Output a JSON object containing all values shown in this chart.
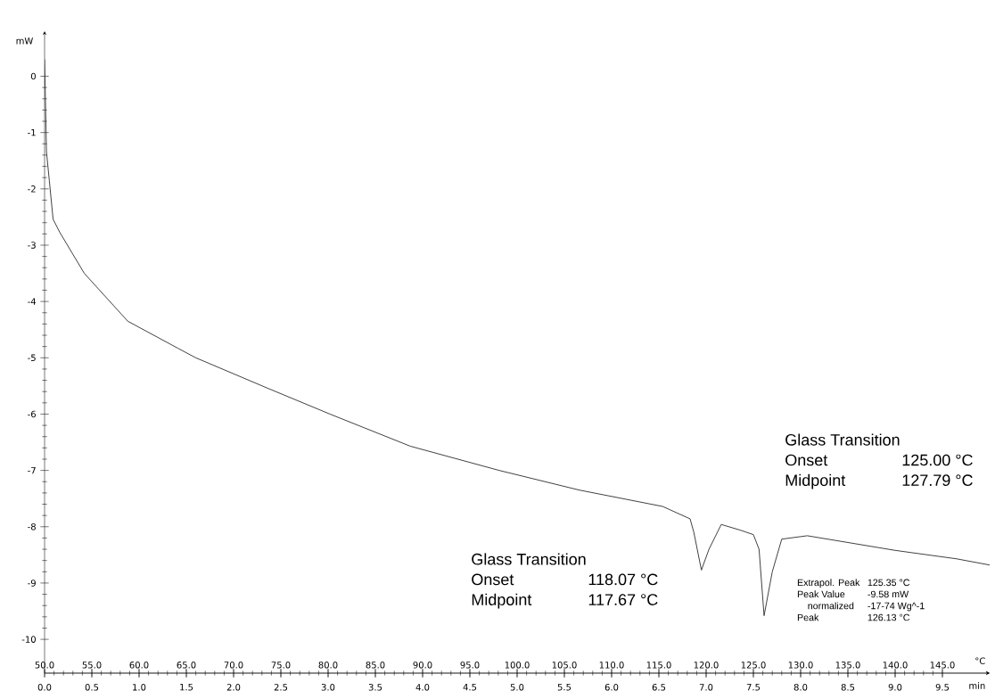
{
  "chart_data": {
    "type": "line",
    "xlabel": "°C",
    "ylabel": "mW",
    "x2label": "min",
    "xlim": [
      50,
      150
    ],
    "ylim": [
      -10.6,
      0.8
    ],
    "x2lim": [
      0,
      10
    ],
    "xticks": [
      {
        "value": 50,
        "label": "50.0"
      },
      {
        "value": 55,
        "label": "55.0"
      },
      {
        "value": 60,
        "label": "60.0"
      },
      {
        "value": 65,
        "label": "65.0"
      },
      {
        "value": 70,
        "label": "70.0"
      },
      {
        "value": 75,
        "label": "75.0"
      },
      {
        "value": 80,
        "label": "80.0"
      },
      {
        "value": 85,
        "label": "85.0"
      },
      {
        "value": 90,
        "label": "90.0"
      },
      {
        "value": 95,
        "label": "95.0"
      },
      {
        "value": 100,
        "label": "100.0"
      },
      {
        "value": 105,
        "label": "105.0"
      },
      {
        "value": 110,
        "label": "110.0"
      },
      {
        "value": 115,
        "label": "115.0"
      },
      {
        "value": 120,
        "label": "120.0"
      },
      {
        "value": 125,
        "label": "125.0"
      },
      {
        "value": 130,
        "label": "130.0"
      },
      {
        "value": 135,
        "label": "135.0"
      },
      {
        "value": 140,
        "label": "140.0"
      },
      {
        "value": 145,
        "label": "145.0"
      }
    ],
    "x2ticks": [
      {
        "value": 0,
        "label": "0.0"
      },
      {
        "value": 0.5,
        "label": "0.5"
      },
      {
        "value": 1,
        "label": "1.0"
      },
      {
        "value": 1.5,
        "label": "1.5"
      },
      {
        "value": 2,
        "label": "2.0"
      },
      {
        "value": 2.5,
        "label": "2.5"
      },
      {
        "value": 3,
        "label": "3.0"
      },
      {
        "value": 3.5,
        "label": "3.5"
      },
      {
        "value": 4,
        "label": "4.0"
      },
      {
        "value": 4.5,
        "label": "4.5"
      },
      {
        "value": 5,
        "label": "5.0"
      },
      {
        "value": 5.5,
        "label": "5.5"
      },
      {
        "value": 6,
        "label": "6.0"
      },
      {
        "value": 6.5,
        "label": "6.5"
      },
      {
        "value": 7,
        "label": "7.0"
      },
      {
        "value": 7.5,
        "label": "7.5"
      },
      {
        "value": 8,
        "label": "8.0"
      },
      {
        "value": 8.5,
        "label": "8.5"
      },
      {
        "value": 9,
        "label": "9.0"
      },
      {
        "value": 9.5,
        "label": "9.5"
      }
    ],
    "yticks": [
      -10,
      -9,
      -8,
      -7,
      -6,
      -5,
      -4,
      -3,
      -2,
      -1,
      0
    ],
    "series": [
      {
        "color": "#333333",
        "line_style": "solid",
        "x": [
          50.0,
          50.2,
          50.5,
          50.9,
          51.6,
          54.2,
          58.8,
          64.1,
          66.0,
          73.6,
          80.2,
          88.7,
          98.1,
          106.6,
          115.4,
          118.3,
          118.7,
          119.5,
          120.3,
          121.6,
          123.6,
          125.0,
          125.6,
          126.13,
          127.0,
          128.0,
          130.7,
          140.0,
          146.5,
          150.0
        ],
        "values": [
          0.3,
          -1.34,
          -1.85,
          -2.54,
          -2.77,
          -3.5,
          -4.35,
          -4.83,
          -5.0,
          -5.54,
          -6.0,
          -6.57,
          -7.0,
          -7.35,
          -7.64,
          -7.86,
          -8.1,
          -8.77,
          -8.4,
          -7.96,
          -8.06,
          -8.14,
          -8.4,
          -9.58,
          -8.8,
          -8.22,
          -8.16,
          -8.42,
          -8.57,
          -8.68
        ]
      }
    ],
    "annotations": [
      "Glass Transition",
      "Onset",
      "118.07 °C",
      "Midpoint",
      "117.67 °C",
      "Glass Transition",
      "Onset",
      "125.00 °C",
      "Midpoint",
      "127.79 °C",
      "Extrapol. Peak",
      "125.35 °C",
      "Peak Value",
      "-9.58 mW",
      "normalized",
      "-17-74 Wg^-1",
      "Peak",
      "126.13 °C"
    ]
  }
}
